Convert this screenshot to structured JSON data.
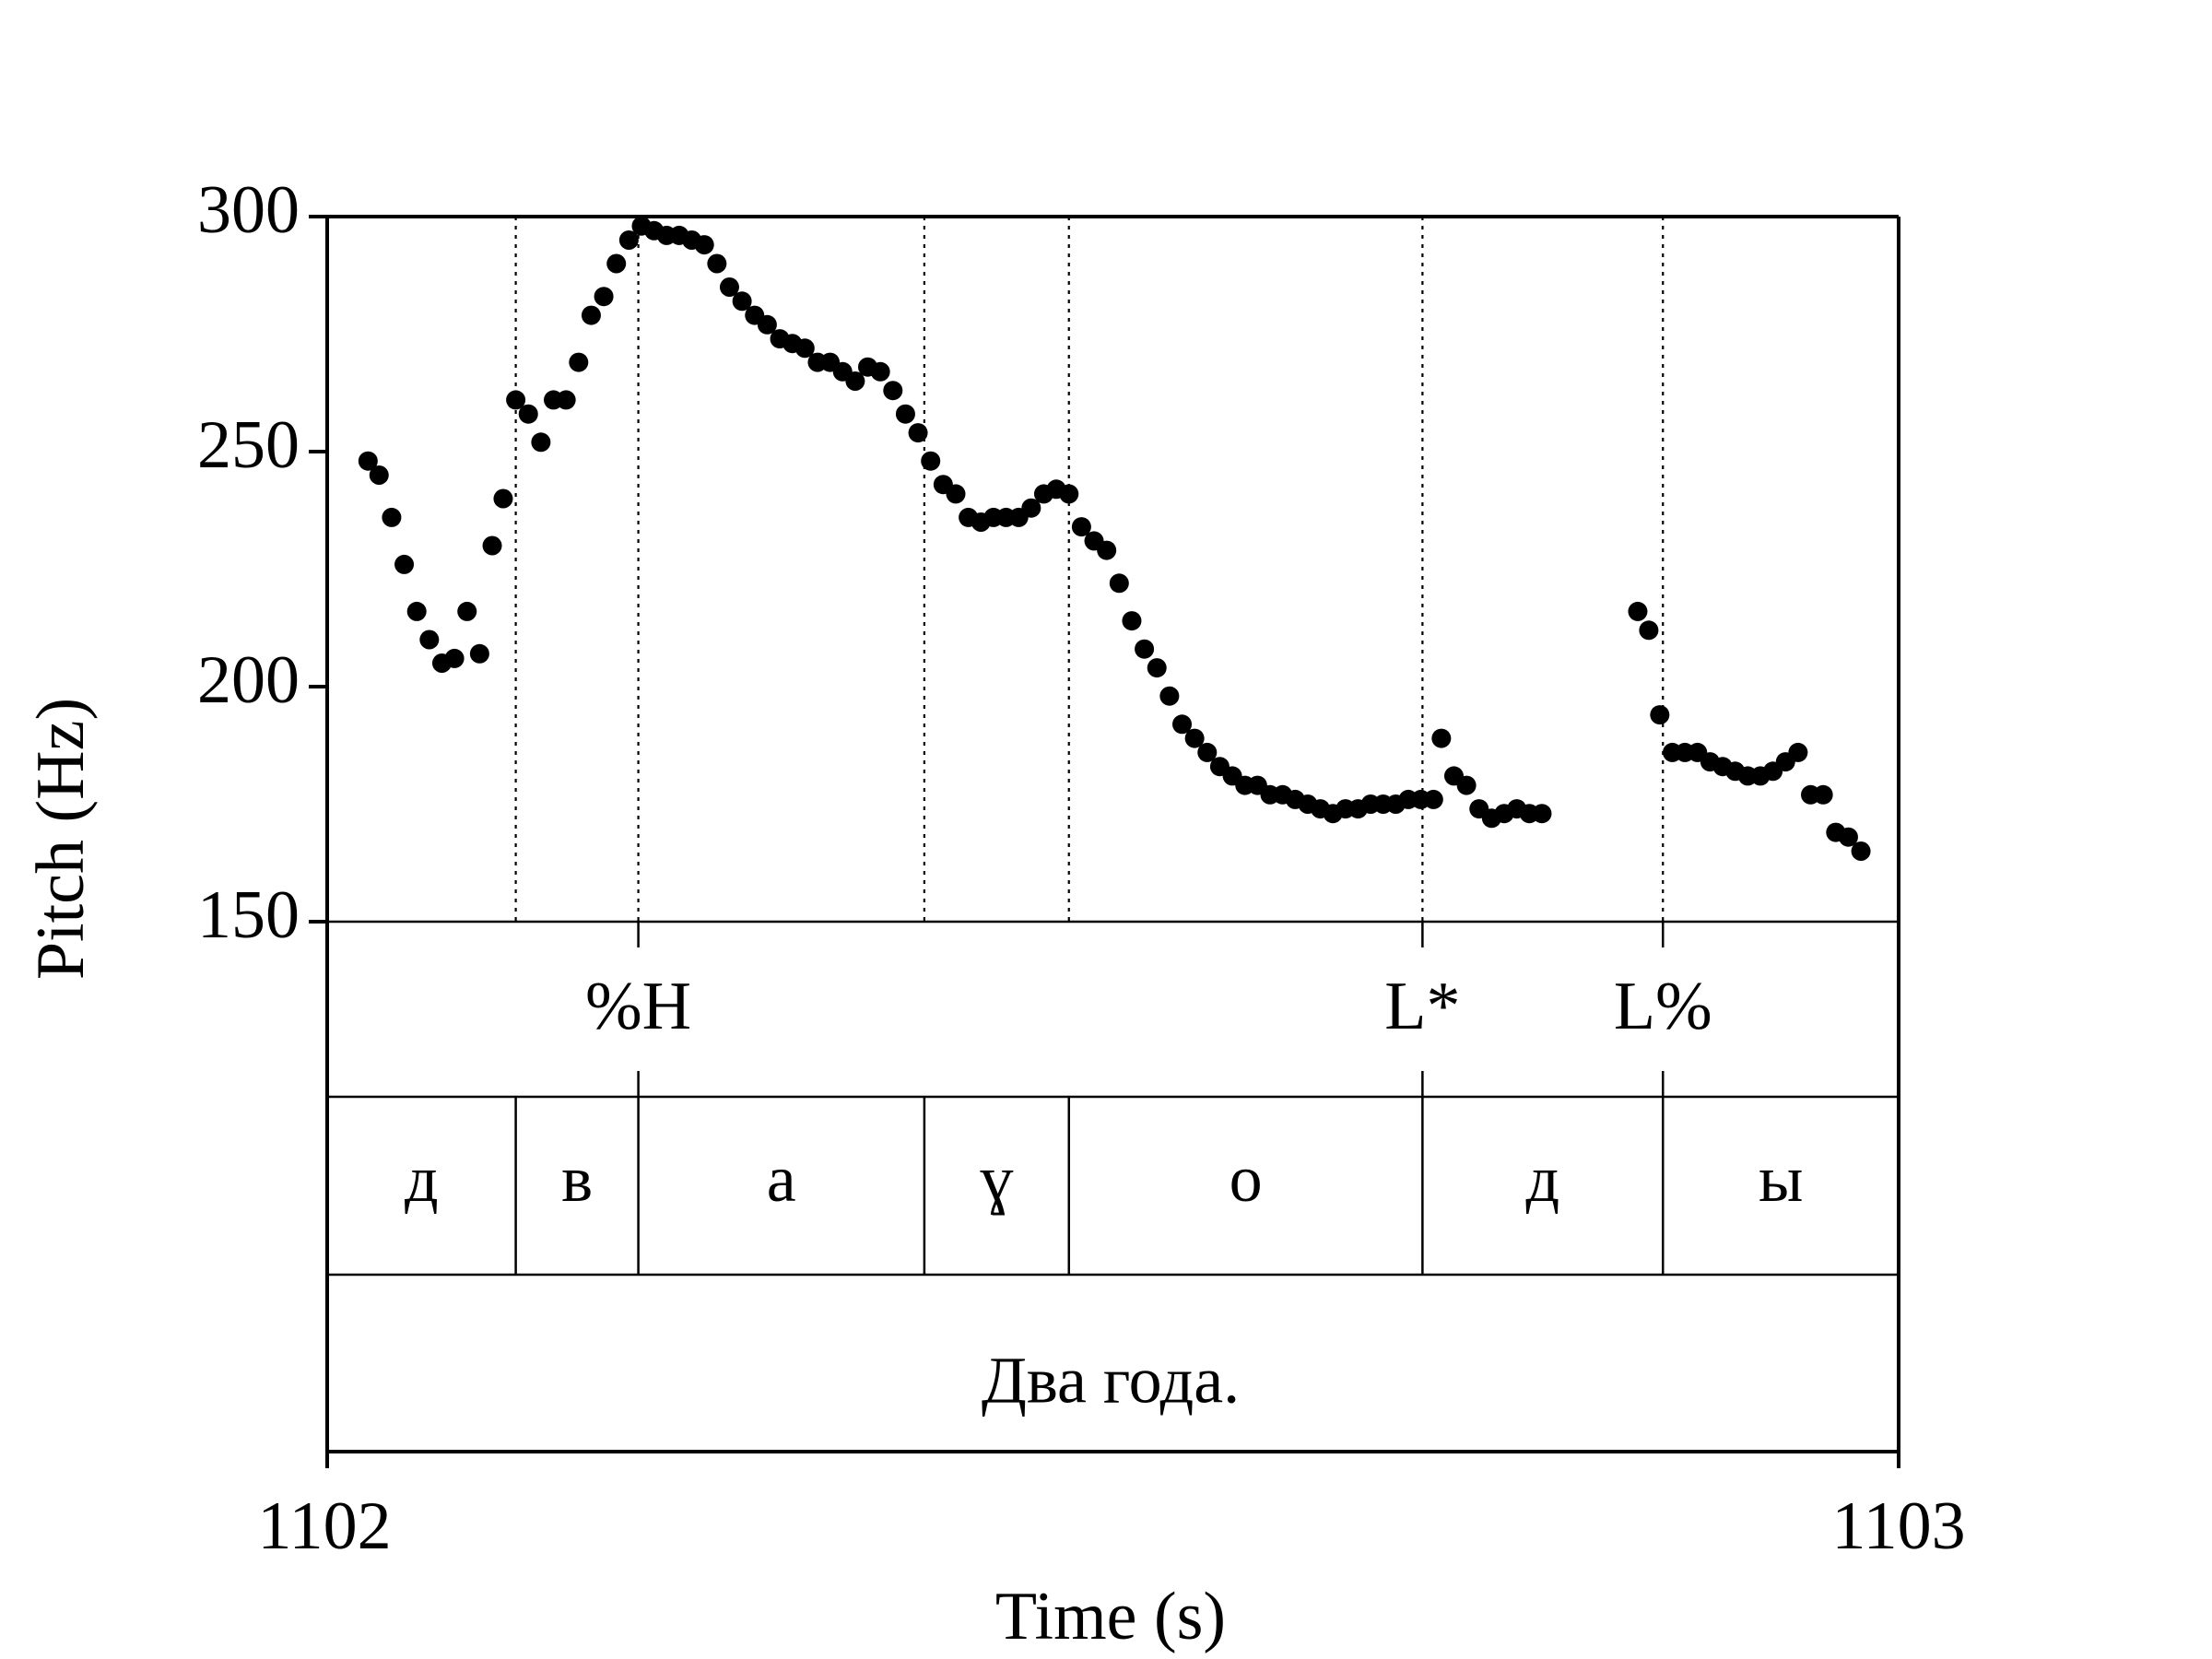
{
  "chart_data": {
    "type": "scatter",
    "xlabel": "Time (s)",
    "ylabel": "Pitch (Hz)",
    "xlim": [
      1102,
      1103
    ],
    "ylim": [
      150,
      300
    ],
    "x_ticks": [
      "1102",
      "1103"
    ],
    "y_ticks": [
      {
        "value": 300,
        "label": "300"
      },
      {
        "value": 250,
        "label": "250"
      },
      {
        "value": 200,
        "label": "200"
      },
      {
        "value": 150,
        "label": "150"
      }
    ],
    "grid": false,
    "boundaries": [
      1102.12,
      1102.198,
      1102.38,
      1102.472,
      1102.697,
      1102.85
    ],
    "series": [
      {
        "points": [
          [
            1102.026,
            248
          ],
          [
            1102.033,
            245
          ],
          [
            1102.041,
            236
          ],
          [
            1102.049,
            226
          ],
          [
            1102.057,
            216
          ],
          [
            1102.065,
            210
          ],
          [
            1102.073,
            205
          ],
          [
            1102.081,
            206
          ],
          [
            1102.089,
            216
          ],
          [
            1102.097,
            207
          ],
          [
            1102.105,
            230
          ],
          [
            1102.112,
            240
          ],
          [
            1102.12,
            261
          ],
          [
            1102.128,
            258
          ],
          [
            1102.136,
            252
          ],
          [
            1102.144,
            261
          ],
          [
            1102.152,
            261
          ],
          [
            1102.16,
            269
          ],
          [
            1102.168,
            279
          ],
          [
            1102.176,
            283
          ],
          [
            1102.184,
            290
          ],
          [
            1102.192,
            295
          ],
          [
            1102.2,
            298
          ],
          [
            1102.208,
            297
          ],
          [
            1102.216,
            296
          ],
          [
            1102.224,
            296
          ],
          [
            1102.232,
            295
          ],
          [
            1102.24,
            294
          ],
          [
            1102.248,
            290
          ],
          [
            1102.256,
            285
          ],
          [
            1102.264,
            282
          ],
          [
            1102.272,
            279
          ],
          [
            1102.28,
            277
          ],
          [
            1102.288,
            274
          ],
          [
            1102.296,
            273
          ],
          [
            1102.304,
            272
          ],
          [
            1102.312,
            269
          ],
          [
            1102.32,
            269
          ],
          [
            1102.328,
            267
          ],
          [
            1102.336,
            265
          ],
          [
            1102.344,
            268
          ],
          [
            1102.352,
            267
          ],
          [
            1102.36,
            263
          ],
          [
            1102.368,
            258
          ],
          [
            1102.376,
            254
          ],
          [
            1102.384,
            248
          ],
          [
            1102.392,
            243
          ],
          [
            1102.4,
            241
          ],
          [
            1102.408,
            236
          ],
          [
            1102.416,
            235
          ],
          [
            1102.424,
            236
          ],
          [
            1102.432,
            236
          ],
          [
            1102.44,
            236
          ],
          [
            1102.448,
            238
          ],
          [
            1102.456,
            241
          ],
          [
            1102.464,
            242
          ],
          [
            1102.472,
            241
          ],
          [
            1102.48,
            234
          ],
          [
            1102.488,
            231
          ],
          [
            1102.496,
            229
          ],
          [
            1102.504,
            222
          ],
          [
            1102.512,
            214
          ],
          [
            1102.52,
            208
          ],
          [
            1102.528,
            204
          ],
          [
            1102.536,
            198
          ],
          [
            1102.544,
            192
          ],
          [
            1102.552,
            189
          ],
          [
            1102.56,
            186
          ],
          [
            1102.568,
            183
          ],
          [
            1102.576,
            181
          ],
          [
            1102.584,
            179
          ],
          [
            1102.592,
            179
          ],
          [
            1102.6,
            177
          ],
          [
            1102.608,
            177
          ],
          [
            1102.616,
            176
          ],
          [
            1102.624,
            175
          ],
          [
            1102.632,
            174
          ],
          [
            1102.64,
            173
          ],
          [
            1102.648,
            174
          ],
          [
            1102.656,
            174
          ],
          [
            1102.664,
            175
          ],
          [
            1102.672,
            175
          ],
          [
            1102.68,
            175
          ],
          [
            1102.688,
            176
          ],
          [
            1102.696,
            176
          ],
          [
            1102.704,
            176
          ],
          [
            1102.709,
            189
          ],
          [
            1102.717,
            181
          ],
          [
            1102.725,
            179
          ],
          [
            1102.733,
            174
          ],
          [
            1102.741,
            172
          ],
          [
            1102.749,
            173
          ],
          [
            1102.757,
            174
          ],
          [
            1102.765,
            173
          ],
          [
            1102.773,
            173
          ],
          [
            1102.834,
            216
          ],
          [
            1102.841,
            212
          ],
          [
            1102.848,
            194
          ],
          [
            1102.856,
            186
          ],
          [
            1102.864,
            186
          ],
          [
            1102.872,
            186
          ],
          [
            1102.88,
            184
          ],
          [
            1102.888,
            183
          ],
          [
            1102.896,
            182
          ],
          [
            1102.904,
            181
          ],
          [
            1102.912,
            181
          ],
          [
            1102.92,
            182
          ],
          [
            1102.928,
            184
          ],
          [
            1102.936,
            186
          ],
          [
            1102.944,
            177
          ],
          [
            1102.952,
            177
          ],
          [
            1102.96,
            169
          ],
          [
            1102.968,
            168
          ],
          [
            1102.976,
            165
          ]
        ]
      }
    ]
  },
  "tones": [
    {
      "time": 1102.198,
      "label": "%H"
    },
    {
      "time": 1102.697,
      "label": "L*"
    },
    {
      "time": 1102.85,
      "label": "L%"
    }
  ],
  "segments": [
    {
      "start": 1102.0,
      "end": 1102.12,
      "label": "д"
    },
    {
      "start": 1102.12,
      "end": 1102.198,
      "label": "в"
    },
    {
      "start": 1102.198,
      "end": 1102.38,
      "label": "а"
    },
    {
      "start": 1102.38,
      "end": 1102.472,
      "label": "ɣ"
    },
    {
      "start": 1102.472,
      "end": 1102.697,
      "label": "о"
    },
    {
      "start": 1102.697,
      "end": 1102.85,
      "label": "д"
    },
    {
      "start": 1102.85,
      "end": 1103.0,
      "label": "ы"
    }
  ],
  "sentence": "Два года."
}
